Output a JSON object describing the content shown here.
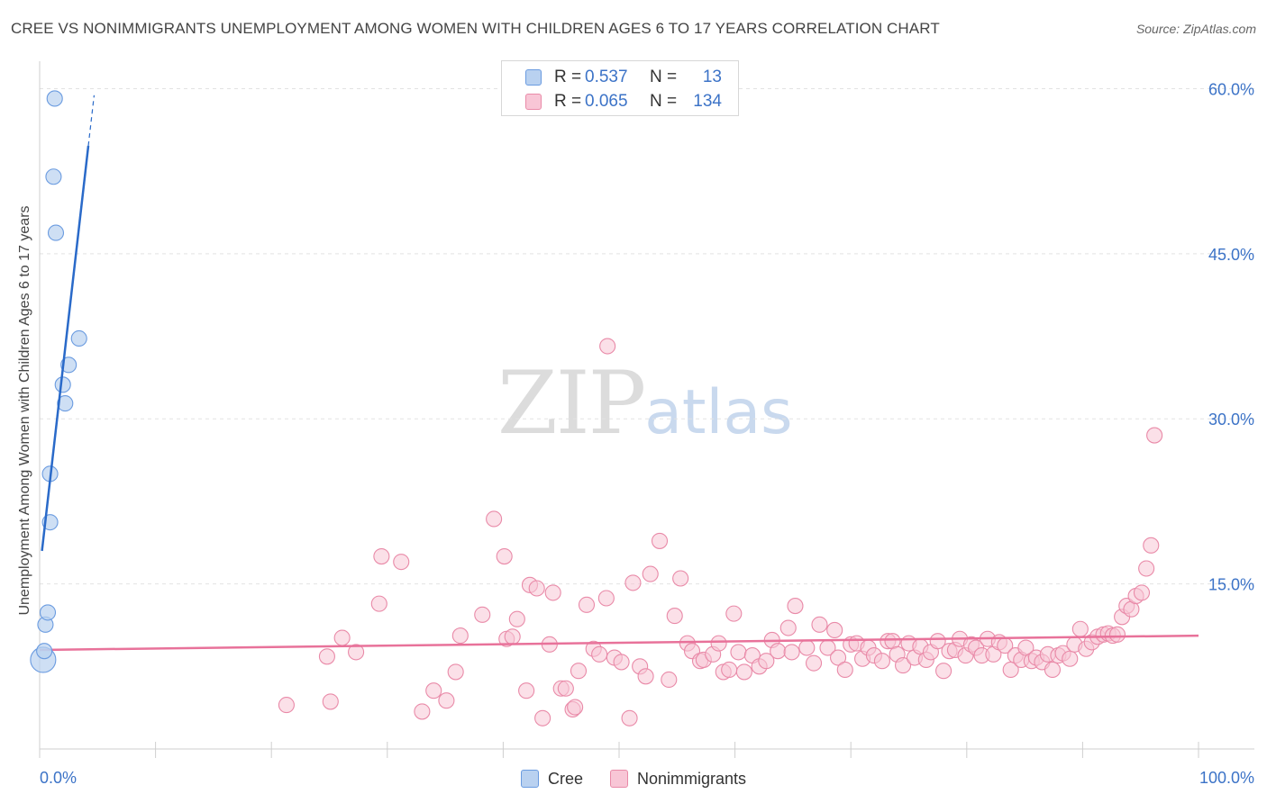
{
  "title": "CREE VS NONIMMIGRANTS UNEMPLOYMENT AMONG WOMEN WITH CHILDREN AGES 6 TO 17 YEARS CORRELATION CHART",
  "source": "Source: ZipAtlas.com",
  "watermark": {
    "zip": "ZIP",
    "atlas": "atlas"
  },
  "legend_top": [
    {
      "r_label": "R =",
      "r_value": "0.537",
      "n_label": "N =",
      "n_value": "13"
    },
    {
      "r_label": "R =",
      "r_value": "0.065",
      "n_label": "N =",
      "n_value": "134"
    }
  ],
  "legend_bottom": [
    {
      "label": "Cree"
    },
    {
      "label": "Nonimmigrants"
    }
  ],
  "colors": {
    "cree_fill": "#b9d1f0",
    "cree_stroke": "#6a9be0",
    "cree_line": "#2a6ac9",
    "non_fill": "#f8c6d6",
    "non_stroke": "#e98aa8",
    "non_line": "#e8729a",
    "axis_text": "#3c73c7",
    "grid": "#e2e2e2"
  },
  "chart_data": {
    "type": "scatter",
    "title": "CREE VS NONIMMIGRANTS UNEMPLOYMENT AMONG WOMEN WITH CHILDREN AGES 6 TO 17 YEARS CORRELATION CHART",
    "xlabel": "",
    "ylabel": "Unemployment Among Women with Children Ages 6 to 17 years",
    "xlim": [
      0,
      100
    ],
    "ylim": [
      0,
      62
    ],
    "x_tick_labels": [
      "0.0%",
      "100.0%"
    ],
    "y_ticks": [
      15,
      30,
      45,
      60
    ],
    "y_tick_labels": [
      "15.0%",
      "30.0%",
      "45.0%",
      "60.0%"
    ],
    "grid": true,
    "series": [
      {
        "name": "Cree",
        "points": [
          [
            0.3,
            8.1,
            2
          ],
          [
            0.4,
            8.9,
            1
          ],
          [
            0.5,
            11.3,
            1
          ],
          [
            0.7,
            12.4,
            1
          ],
          [
            0.9,
            20.6,
            1
          ],
          [
            0.9,
            25.0,
            1
          ],
          [
            1.2,
            52.0,
            1
          ],
          [
            1.3,
            59.1,
            1
          ],
          [
            1.4,
            46.9,
            1
          ],
          [
            2.0,
            33.1,
            1
          ],
          [
            2.2,
            31.4,
            1
          ],
          [
            2.5,
            34.9,
            1
          ],
          [
            3.4,
            37.3,
            1
          ]
        ],
        "trend": {
          "x0": 0.2,
          "y0": 18.0,
          "x1": 4.2,
          "y1": 54.8,
          "dash_x1": 4.7,
          "dash_y1": 59.4
        }
      },
      {
        "name": "Nonimmigrants",
        "points": [
          [
            21.3,
            4.0
          ],
          [
            24.8,
            8.4
          ],
          [
            25.1,
            4.3
          ],
          [
            26.1,
            10.1
          ],
          [
            27.3,
            8.8
          ],
          [
            29.3,
            13.2
          ],
          [
            29.5,
            17.5
          ],
          [
            31.2,
            17.0
          ],
          [
            33.0,
            3.4
          ],
          [
            34.0,
            5.3
          ],
          [
            35.1,
            4.4
          ],
          [
            35.9,
            7.0
          ],
          [
            36.3,
            10.3
          ],
          [
            38.2,
            12.2
          ],
          [
            39.2,
            20.9
          ],
          [
            40.1,
            17.5
          ],
          [
            40.3,
            10.0
          ],
          [
            40.8,
            10.2
          ],
          [
            41.2,
            11.8
          ],
          [
            42.0,
            5.3
          ],
          [
            42.3,
            14.9
          ],
          [
            42.9,
            14.6
          ],
          [
            43.4,
            2.8
          ],
          [
            44.0,
            9.5
          ],
          [
            44.3,
            14.2
          ],
          [
            45.0,
            5.5
          ],
          [
            45.4,
            5.5
          ],
          [
            46.0,
            3.6
          ],
          [
            46.2,
            3.8
          ],
          [
            46.5,
            7.1
          ],
          [
            47.2,
            13.1
          ],
          [
            47.8,
            9.1
          ],
          [
            48.3,
            8.6
          ],
          [
            48.9,
            13.7
          ],
          [
            49.0,
            36.6
          ],
          [
            49.6,
            8.3
          ],
          [
            50.2,
            7.9
          ],
          [
            50.9,
            2.8
          ],
          [
            51.2,
            15.1
          ],
          [
            51.8,
            7.5
          ],
          [
            52.3,
            6.6
          ],
          [
            52.7,
            15.9
          ],
          [
            53.5,
            18.9
          ],
          [
            54.3,
            6.3
          ],
          [
            54.8,
            12.1
          ],
          [
            55.3,
            15.5
          ],
          [
            55.9,
            9.6
          ],
          [
            56.3,
            8.9
          ],
          [
            57.0,
            8.0
          ],
          [
            57.3,
            8.1
          ],
          [
            58.1,
            8.6
          ],
          [
            58.6,
            9.6
          ],
          [
            59.0,
            7.0
          ],
          [
            59.5,
            7.2
          ],
          [
            59.9,
            12.3
          ],
          [
            60.3,
            8.8
          ],
          [
            60.8,
            7.0
          ],
          [
            61.5,
            8.5
          ],
          [
            62.1,
            7.5
          ],
          [
            62.7,
            8.0
          ],
          [
            63.2,
            9.9
          ],
          [
            63.7,
            8.9
          ],
          [
            64.6,
            11.0
          ],
          [
            64.9,
            8.8
          ],
          [
            65.2,
            13.0
          ],
          [
            66.2,
            9.2
          ],
          [
            66.8,
            7.8
          ],
          [
            67.3,
            11.3
          ],
          [
            68.0,
            9.2
          ],
          [
            68.6,
            10.8
          ],
          [
            68.9,
            8.3
          ],
          [
            69.5,
            7.2
          ],
          [
            70.0,
            9.5
          ],
          [
            70.5,
            9.6
          ],
          [
            71.0,
            8.2
          ],
          [
            71.5,
            9.2
          ],
          [
            72.0,
            8.5
          ],
          [
            72.7,
            8.0
          ],
          [
            73.2,
            9.8
          ],
          [
            73.6,
            9.8
          ],
          [
            74.0,
            8.6
          ],
          [
            74.5,
            7.6
          ],
          [
            75.0,
            9.6
          ],
          [
            75.5,
            8.3
          ],
          [
            76.0,
            9.3
          ],
          [
            76.5,
            8.1
          ],
          [
            76.9,
            8.8
          ],
          [
            77.5,
            9.8
          ],
          [
            78.0,
            7.1
          ],
          [
            78.5,
            8.9
          ],
          [
            79.0,
            9.0
          ],
          [
            79.4,
            10.0
          ],
          [
            79.9,
            8.5
          ],
          [
            80.4,
            9.5
          ],
          [
            80.8,
            9.2
          ],
          [
            81.3,
            8.5
          ],
          [
            81.8,
            10.0
          ],
          [
            82.3,
            8.6
          ],
          [
            82.8,
            9.7
          ],
          [
            83.3,
            9.4
          ],
          [
            83.8,
            7.2
          ],
          [
            84.2,
            8.5
          ],
          [
            84.7,
            8.1
          ],
          [
            85.1,
            9.2
          ],
          [
            85.6,
            8.0
          ],
          [
            86.0,
            8.3
          ],
          [
            86.5,
            7.9
          ],
          [
            87.0,
            8.6
          ],
          [
            87.4,
            7.2
          ],
          [
            87.9,
            8.5
          ],
          [
            88.3,
            8.7
          ],
          [
            88.9,
            8.2
          ],
          [
            89.3,
            9.5
          ],
          [
            89.8,
            10.9
          ],
          [
            90.3,
            9.1
          ],
          [
            90.8,
            9.7
          ],
          [
            91.3,
            10.2
          ],
          [
            91.8,
            10.4
          ],
          [
            92.2,
            10.5
          ],
          [
            92.6,
            10.3
          ],
          [
            93.0,
            10.4
          ],
          [
            93.4,
            12.0
          ],
          [
            93.8,
            13.0
          ],
          [
            94.2,
            12.7
          ],
          [
            94.6,
            13.9
          ],
          [
            95.1,
            14.2
          ],
          [
            95.5,
            16.4
          ],
          [
            95.9,
            18.5
          ],
          [
            96.2,
            28.5
          ]
        ],
        "trend": {
          "x0": 0,
          "y0": 9.0,
          "x1": 100,
          "y1": 10.3
        }
      }
    ]
  }
}
